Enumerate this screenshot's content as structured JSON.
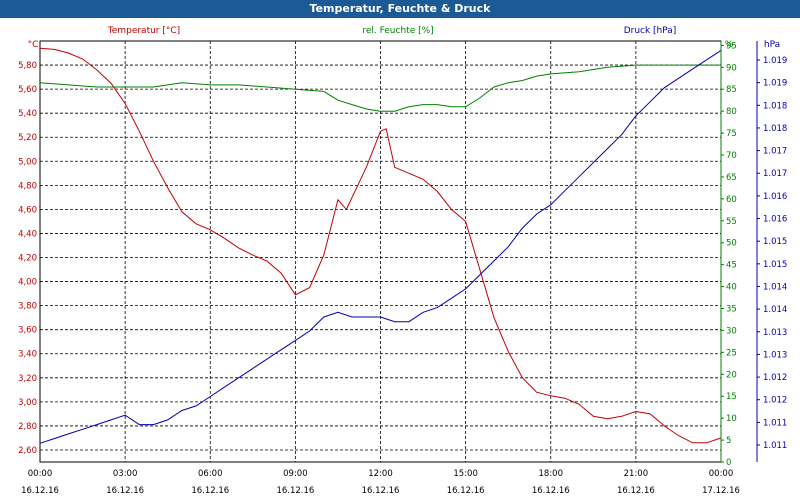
{
  "window_title": "Temperatur, Feuchte & Druck",
  "chart_data": {
    "type": "line",
    "title": "Temperatur, Feuchte & Druck",
    "x_range_hours": [
      0,
      24
    ],
    "x_tick_hours": [
      0,
      3,
      6,
      9,
      12,
      15,
      18,
      21,
      24
    ],
    "xticks": [
      {
        "time": "00:00",
        "date": "16.12.16"
      },
      {
        "time": "03:00",
        "date": "16.12.16"
      },
      {
        "time": "06:00",
        "date": "16.12.16"
      },
      {
        "time": "09:00",
        "date": "16.12.16"
      },
      {
        "time": "12:00",
        "date": "16.12.16"
      },
      {
        "time": "15:00",
        "date": "16.12.16"
      },
      {
        "time": "18:00",
        "date": "16.12.16"
      },
      {
        "time": "21:00",
        "date": "16.12.16"
      },
      {
        "time": "00:00",
        "date": "17.12.16"
      }
    ],
    "axes": {
      "temperature": {
        "label": "Temperatur [°C]",
        "unit": "°C",
        "color": "#c00000",
        "range": [
          2.5,
          6.0
        ],
        "ticks": [
          "2,60",
          "2,80",
          "3,00",
          "3,20",
          "3,40",
          "3,60",
          "3,80",
          "4,00",
          "4,20",
          "4,40",
          "4,60",
          "4,80",
          "5,00",
          "5,20",
          "5,40",
          "5,60",
          "5,80"
        ]
      },
      "humidity": {
        "label": "rel. Feuchte [%]",
        "unit": "%",
        "color": "#008000",
        "range": [
          0,
          96
        ],
        "ticks": [
          "0",
          "5",
          "10",
          "15",
          "20",
          "25",
          "30",
          "35",
          "40",
          "45",
          "50",
          "55",
          "60",
          "65",
          "70",
          "75",
          "80",
          "85",
          "90",
          "95"
        ]
      },
      "pressure": {
        "label": "Druck [hPa]",
        "unit": "hPa",
        "color": "#0000b0",
        "range": [
          1.0105,
          1.0195
        ],
        "ticks": [
          "1.011",
          "1.011",
          "1.012",
          "1.012",
          "1.013",
          "1.013",
          "1.014",
          "1.014",
          "1.015",
          "1.015",
          "1.016",
          "1.016",
          "1.017",
          "1.017",
          "1.018",
          "1.018",
          "1.019",
          "1.019"
        ]
      }
    },
    "series": [
      {
        "name": "Temperatur [°C]",
        "axis": "temperature",
        "color": "#c00000",
        "x": [
          0,
          0.5,
          1,
          1.5,
          2,
          2.5,
          3,
          3.5,
          4,
          4.5,
          5,
          5.5,
          6,
          6.5,
          7,
          7.5,
          8,
          8.5,
          9,
          9.5,
          10,
          10.5,
          10.8,
          11,
          11.5,
          12,
          12.2,
          12.5,
          13,
          13.5,
          14,
          14.5,
          15,
          15.5,
          16,
          16.5,
          17,
          17.5,
          18,
          18.5,
          19,
          19.5,
          20,
          20.5,
          21,
          21.5,
          22,
          22.5,
          23,
          23.5,
          24
        ],
        "values": [
          5.94,
          5.93,
          5.9,
          5.85,
          5.76,
          5.65,
          5.48,
          5.25,
          5.0,
          4.78,
          4.58,
          4.48,
          4.43,
          4.36,
          4.28,
          4.22,
          4.17,
          4.07,
          3.89,
          3.95,
          4.22,
          4.68,
          4.6,
          4.7,
          4.95,
          5.25,
          5.27,
          4.95,
          4.9,
          4.85,
          4.75,
          4.6,
          4.5,
          4.1,
          3.7,
          3.42,
          3.2,
          3.08,
          3.05,
          3.03,
          2.98,
          2.88,
          2.86,
          2.88,
          2.92,
          2.9,
          2.8,
          2.72,
          2.66,
          2.66,
          2.7
        ]
      },
      {
        "name": "rel. Feuchte [%]",
        "axis": "humidity",
        "color": "#008000",
        "x": [
          0,
          1,
          2,
          3,
          4,
          5,
          6,
          7,
          8,
          9,
          10,
          10.5,
          11,
          11.5,
          12,
          12.5,
          13,
          13.5,
          14,
          14.5,
          15,
          15.5,
          16,
          16.5,
          17,
          17.5,
          18,
          19,
          20,
          21,
          22,
          23,
          24
        ],
        "values": [
          86.5,
          86,
          85.5,
          85.5,
          85.5,
          86.5,
          86,
          86,
          85.5,
          85,
          84.5,
          82.5,
          81.5,
          80.5,
          80,
          80,
          81,
          81.5,
          81.5,
          81,
          81,
          83,
          85.5,
          86.5,
          87,
          88,
          88.5,
          89,
          90,
          90.5,
          90.5,
          90.5,
          90.5
        ]
      },
      {
        "name": "Druck [hPa]",
        "axis": "pressure",
        "color": "#0000b0",
        "x": [
          0,
          0.5,
          1,
          1.5,
          2,
          2.5,
          3,
          3.5,
          4,
          4.5,
          5,
          5.5,
          6,
          6.5,
          7,
          7.5,
          8,
          8.5,
          9,
          9.5,
          10,
          10.5,
          11,
          11.5,
          12,
          12.5,
          13,
          13.5,
          14,
          14.5,
          15,
          15.5,
          16,
          16.5,
          17,
          17.5,
          18,
          18.5,
          19,
          19.5,
          20,
          20.5,
          21,
          21.5,
          22,
          22.5,
          23,
          23.5,
          24
        ],
        "values": [
          1.0109,
          1.011,
          1.0111,
          1.0112,
          1.0113,
          1.0114,
          1.0115,
          1.0113,
          1.0113,
          1.0114,
          1.0116,
          1.0117,
          1.0119,
          1.0121,
          1.0123,
          1.0125,
          1.0127,
          1.0129,
          1.0131,
          1.0133,
          1.0136,
          1.0137,
          1.0136,
          1.0136,
          1.0136,
          1.0135,
          1.0135,
          1.0137,
          1.0138,
          1.014,
          1.0142,
          1.0145,
          1.0148,
          1.0151,
          1.0155,
          1.0158,
          1.016,
          1.0163,
          1.0166,
          1.0169,
          1.0172,
          1.0175,
          1.0179,
          1.0182,
          1.0185,
          1.0187,
          1.0189,
          1.0191,
          1.0193
        ]
      }
    ]
  }
}
